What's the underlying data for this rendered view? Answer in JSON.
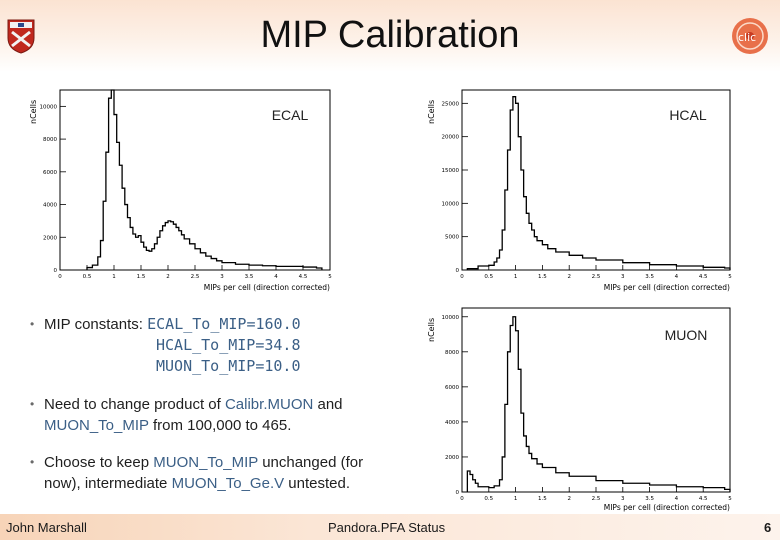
{
  "slide": {
    "title": "MIP Calibration",
    "page_number": "6"
  },
  "footer": {
    "author": "John Marshall",
    "center": "Pandora.PFA Status"
  },
  "plots": {
    "ecal": {
      "label": "ECAL",
      "ylabel": "nCells",
      "xlabel": "MIPs per cell (direction corrected)",
      "y_ticks": [
        "10000",
        "8000",
        "6000",
        "4000",
        "2000",
        "0"
      ],
      "x_ticks": [
        "0",
        "0.5",
        "1",
        "1.5",
        "2",
        "2.5",
        "3",
        "3.5",
        "4",
        "4.5",
        "5"
      ]
    },
    "hcal": {
      "label": "HCAL",
      "ylabel": "nCells",
      "xlabel": "MIPs per cell (direction corrected)",
      "y_ticks": [
        "25000",
        "20000",
        "15000",
        "10000",
        "5000",
        "0"
      ],
      "x_ticks": [
        "0",
        "0.5",
        "1",
        "1.5",
        "2",
        "2.5",
        "3",
        "3.5",
        "4",
        "4.5",
        "5"
      ]
    },
    "muon": {
      "label": "MUON",
      "ylabel": "nCells",
      "xlabel": "MIPs per cell (direction corrected)",
      "y_ticks": [
        "10000",
        "8000",
        "6000",
        "4000",
        "2000",
        "0"
      ],
      "x_ticks": [
        "0",
        "0.5",
        "1",
        "1.5",
        "2",
        "2.5",
        "3",
        "3.5",
        "4",
        "4.5",
        "5"
      ]
    }
  },
  "chart_data": [
    {
      "type": "bar",
      "label": "ECAL",
      "xlabel": "MIPs per cell (direction corrected)",
      "ylabel": "nCells",
      "xlim": [
        0,
        5
      ],
      "ylim": [
        0,
        11000
      ],
      "x": [
        0.5,
        0.6,
        0.7,
        0.75,
        0.8,
        0.85,
        0.9,
        0.95,
        1.0,
        1.05,
        1.1,
        1.15,
        1.2,
        1.25,
        1.3,
        1.35,
        1.4,
        1.45,
        1.5,
        1.55,
        1.6,
        1.65,
        1.7,
        1.75,
        1.8,
        1.85,
        1.9,
        1.95,
        2.0,
        2.05,
        2.1,
        2.15,
        2.2,
        2.25,
        2.3,
        2.4,
        2.5,
        2.6,
        2.7,
        2.8,
        2.9,
        3.0,
        3.25,
        3.5,
        3.75,
        4.0,
        4.5,
        4.75
      ],
      "values": [
        150,
        300,
        800,
        1800,
        4200,
        7200,
        10500,
        11000,
        9500,
        7800,
        6400,
        5000,
        4000,
        3200,
        2600,
        2200,
        2000,
        2100,
        1700,
        1400,
        1200,
        1150,
        1300,
        1600,
        2000,
        2400,
        2700,
        2900,
        3000,
        2950,
        2800,
        2600,
        2400,
        2150,
        1900,
        1600,
        1300,
        1050,
        850,
        700,
        560,
        450,
        350,
        300,
        260,
        220,
        180,
        120
      ]
    },
    {
      "type": "bar",
      "label": "HCAL",
      "xlabel": "MIPs per cell (direction corrected)",
      "ylabel": "nCells",
      "xlim": [
        0,
        5
      ],
      "ylim": [
        0,
        27000
      ],
      "x": [
        0.1,
        0.3,
        0.5,
        0.6,
        0.65,
        0.7,
        0.75,
        0.8,
        0.85,
        0.9,
        0.95,
        1.0,
        1.05,
        1.1,
        1.15,
        1.2,
        1.25,
        1.3,
        1.35,
        1.4,
        1.5,
        1.6,
        1.75,
        2.0,
        2.25,
        2.5,
        3.0,
        3.5,
        4.0,
        4.5,
        4.9
      ],
      "values": [
        200,
        600,
        700,
        1200,
        1800,
        3000,
        6000,
        12000,
        18000,
        24000,
        26000,
        25000,
        20000,
        15000,
        11000,
        8500,
        7000,
        6000,
        5000,
        4400,
        3800,
        3200,
        2700,
        2200,
        1800,
        1500,
        1100,
        800,
        600,
        400,
        300
      ]
    },
    {
      "type": "bar",
      "label": "MUON",
      "xlabel": "MIPs per cell (direction corrected)",
      "ylabel": "nCells",
      "xlim": [
        0,
        5
      ],
      "ylim": [
        0,
        10500
      ],
      "x": [
        0.1,
        0.15,
        0.2,
        0.25,
        0.3,
        0.5,
        0.6,
        0.7,
        0.75,
        0.8,
        0.85,
        0.9,
        0.95,
        1.0,
        1.05,
        1.1,
        1.15,
        1.2,
        1.25,
        1.3,
        1.4,
        1.5,
        1.75,
        2.0,
        2.5,
        3.0,
        3.5,
        4.0,
        4.5,
        4.9
      ],
      "values": [
        1200,
        1000,
        700,
        500,
        300,
        250,
        350,
        700,
        2000,
        5000,
        8000,
        9500,
        10000,
        9200,
        7000,
        4500,
        3200,
        2600,
        2200,
        1900,
        1600,
        1400,
        1100,
        900,
        650,
        500,
        400,
        300,
        250,
        150
      ]
    }
  ],
  "bullets": {
    "b1_prefix": "MIP constants:",
    "b1_line1": "ECAL_To_MIP=160.0",
    "b1_line2": "HCAL_To_MIP=34.8",
    "b1_line3": "MUON_To_MIP=10.0",
    "b2_part1": "Need to change product of",
    "b2_hl1": "Calibr.MUON",
    "b2_part2": "and",
    "b2_hl2": "MUON_To_MIP",
    "b2_part3": "from 100,000 to 465.",
    "b3_part1": "Choose to keep",
    "b3_hl1": "MUON_To_MIP",
    "b3_part2": "unchanged (for",
    "b3_part3": "now), intermediate",
    "b3_hl2": "MUON_To_Ge.V",
    "b3_part4": "untested."
  }
}
